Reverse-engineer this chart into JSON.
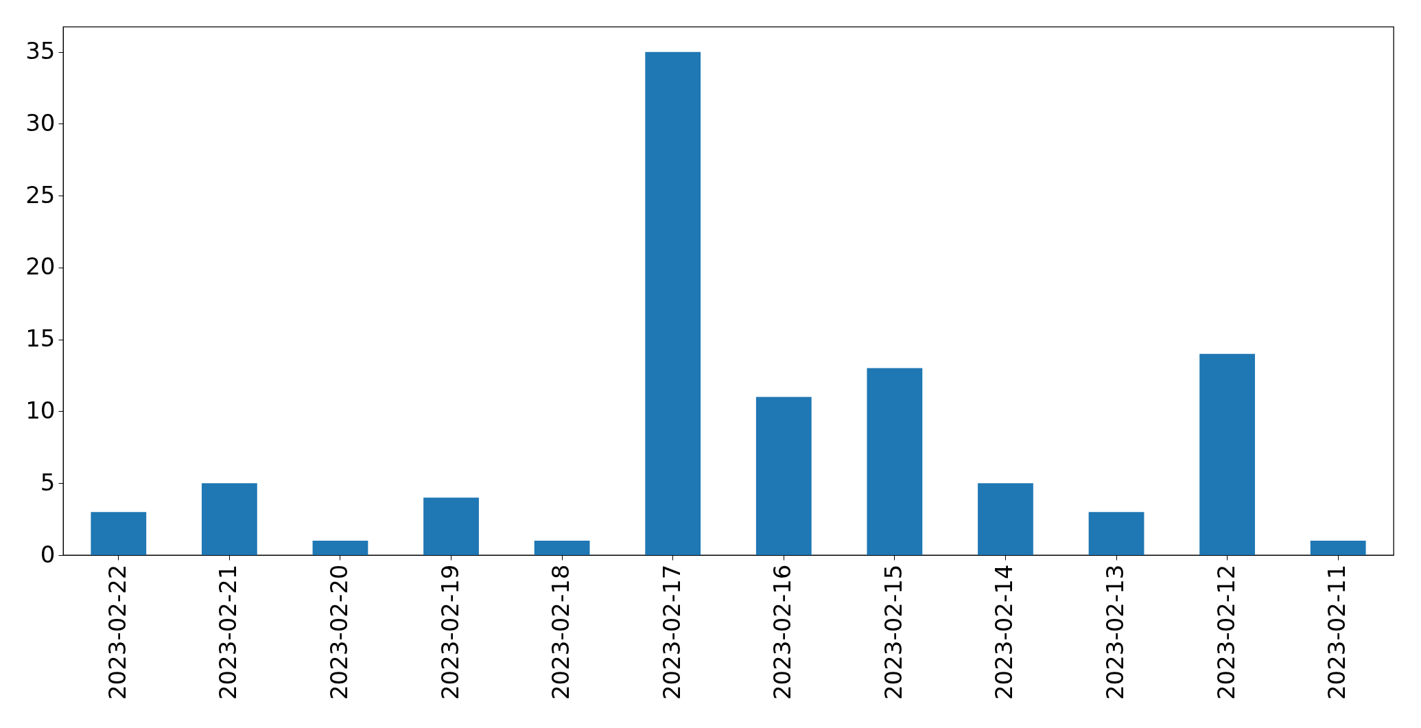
{
  "chart_data": {
    "type": "bar",
    "categories": [
      "2023-02-22",
      "2023-02-21",
      "2023-02-20",
      "2023-02-19",
      "2023-02-18",
      "2023-02-17",
      "2023-02-16",
      "2023-02-15",
      "2023-02-14",
      "2023-02-13",
      "2023-02-12",
      "2023-02-11"
    ],
    "values": [
      3,
      5,
      1,
      4,
      1,
      35,
      11,
      13,
      5,
      3,
      14,
      1
    ],
    "color": "#1f77b4",
    "ylim": [
      0,
      36.75
    ],
    "yticks": [
      0,
      5,
      10,
      15,
      20,
      25,
      30,
      35
    ],
    "grid": false
  }
}
